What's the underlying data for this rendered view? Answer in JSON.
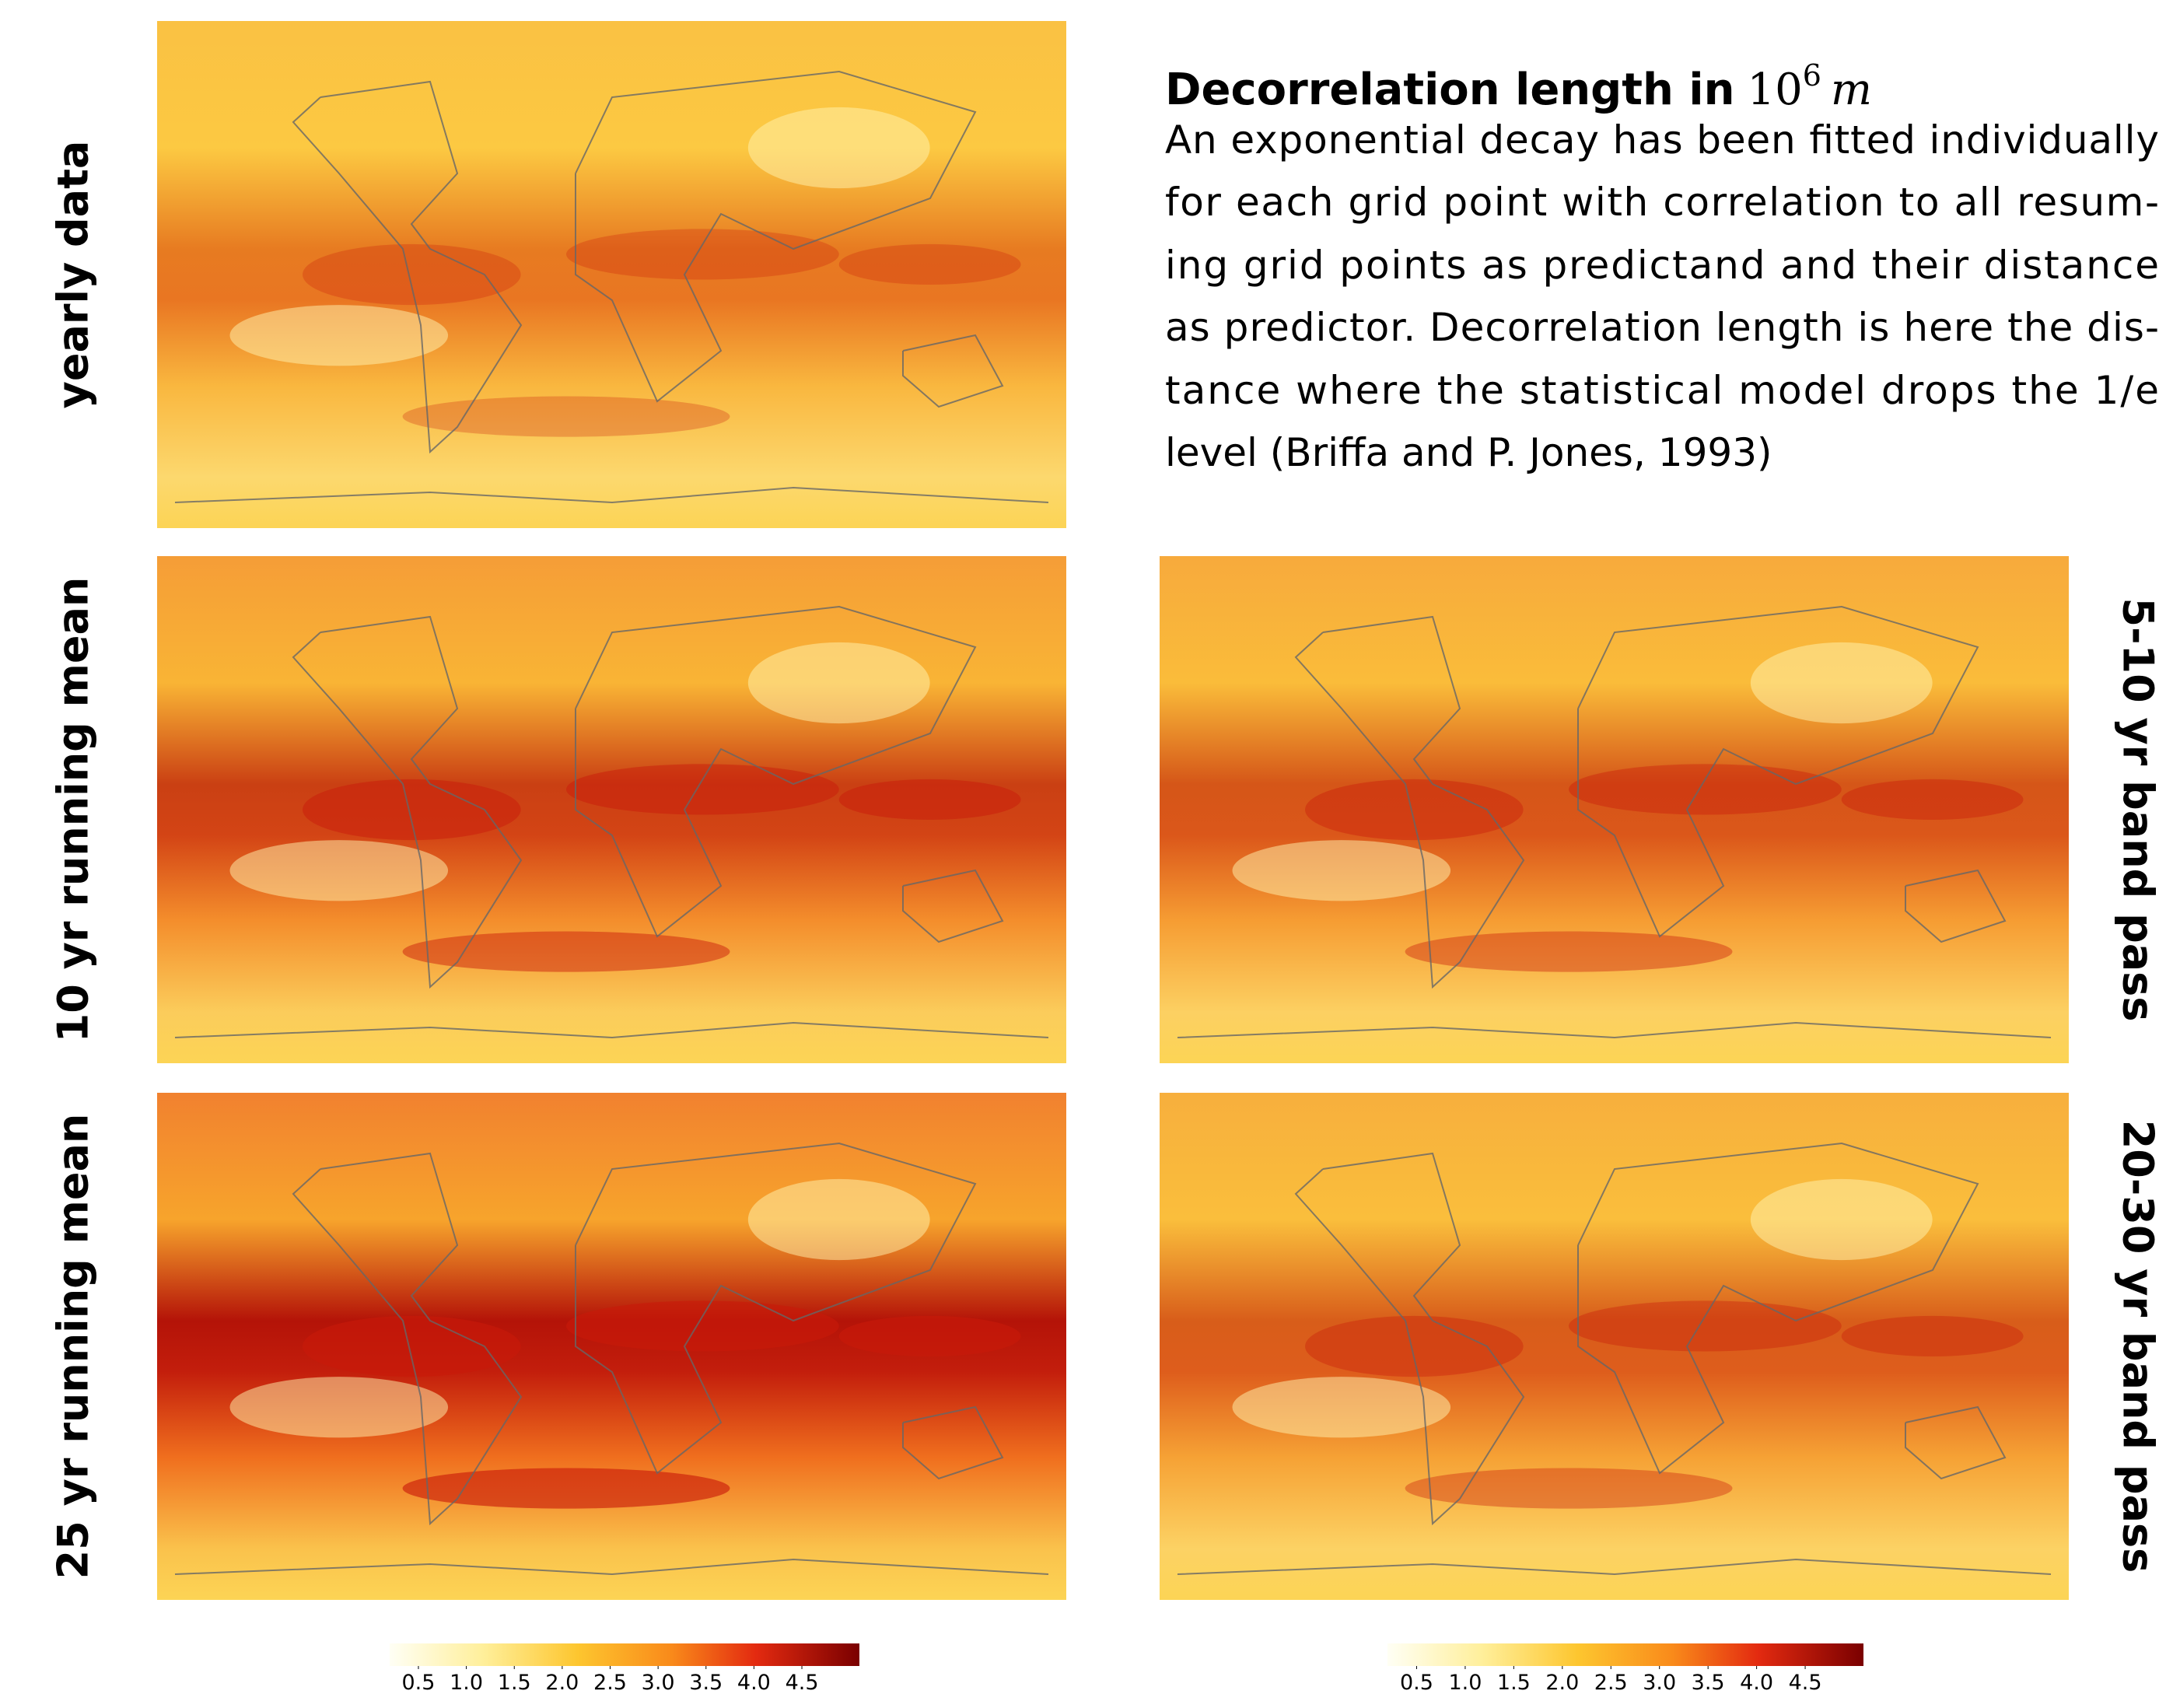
{
  "title": {
    "text": "Decorrelation length in",
    "base": "10",
    "exponent": "6",
    "unit": "m"
  },
  "description": [
    "An exponential decay has been fitted individually",
    "for each grid point with correlation to all resum-",
    "ing grid points as predictand and their distance",
    "as predictor. Decorrelation length is here the dis-",
    "tance where the statistical model drops the 1/e",
    "level (Briffa and P. Jones, 1993)"
  ],
  "panels": [
    {
      "label": "yearly data"
    },
    {
      "label": "10 yr running mean"
    },
    {
      "label": "5-10 yr band pass"
    },
    {
      "label": "25 yr running mean"
    },
    {
      "label": "20-30 yr band pass"
    }
  ],
  "colorbars": [
    {
      "range": [
        0.2,
        5.1
      ],
      "ticks": [
        0.5,
        {
          "value": 1,
          "label": "1.0"
        },
        1.5,
        {
          "value": 2,
          "label": "2.0"
        },
        2.5,
        {
          "value": 3,
          "label": "3.0"
        },
        3.5,
        {
          "value": 4,
          "label": "4.0"
        },
        4.5
      ]
    },
    {
      "range": [
        0.2,
        5.1
      ],
      "ticks": [
        0.5,
        {
          "value": 1,
          "label": "1.0"
        },
        1.5,
        {
          "value": 2,
          "label": "2.0"
        },
        2.5,
        {
          "value": 3,
          "label": "3.0"
        },
        3.5,
        {
          "value": 4,
          "label": "4.0"
        },
        4.5
      ]
    }
  ]
}
